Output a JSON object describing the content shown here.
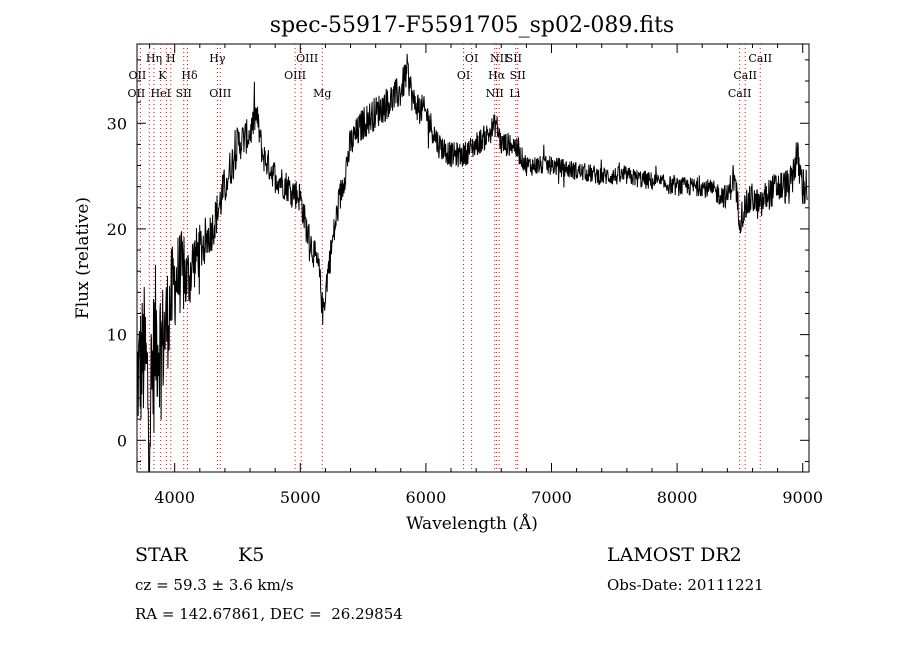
{
  "chart_data": {
    "type": "line",
    "title": "spec-55917-F5591705_sp02-089.fits",
    "xlabel": "Wavelength (Å)",
    "ylabel": "Flux (relative)",
    "xlim": [
      3700,
      9050
    ],
    "ylim": [
      -3,
      37.5
    ],
    "xticks": [
      4000,
      5000,
      6000,
      7000,
      8000,
      9000
    ],
    "yticks": [
      0,
      10,
      20,
      30
    ],
    "series": [
      {
        "name": "flux",
        "anchors_x": [
          3700,
          3760,
          3800,
          3850,
          3900,
          3950,
          4000,
          4050,
          4100,
          4150,
          4200,
          4300,
          4400,
          4500,
          4600,
          4650,
          4700,
          4800,
          4900,
          5000,
          5050,
          5100,
          5150,
          5180,
          5220,
          5300,
          5400,
          5500,
          5600,
          5700,
          5800,
          5850,
          5900,
          6000,
          6100,
          6200,
          6300,
          6400,
          6500,
          6560,
          6600,
          6700,
          6800,
          7000,
          7200,
          7400,
          7600,
          7800,
          8000,
          8200,
          8400,
          8450,
          8500,
          8542,
          8600,
          8662,
          8700,
          8800,
          8900,
          8950,
          9000
        ],
        "anchors_y": [
          6,
          8,
          3,
          10,
          9,
          12,
          15,
          16,
          15,
          17,
          18,
          20,
          24,
          28,
          29,
          31,
          27,
          25,
          24,
          23,
          20,
          18,
          16,
          12,
          16,
          22,
          28,
          30,
          31,
          32,
          33,
          35,
          32,
          31,
          28,
          27,
          27,
          28,
          29,
          30,
          28,
          28,
          26,
          26,
          25.5,
          25,
          25,
          24.5,
          24,
          24,
          23,
          25,
          21,
          22,
          23,
          22,
          23,
          24,
          24,
          27,
          24
        ],
        "noise_amp": [
          6,
          7,
          8,
          7,
          6,
          5,
          4.5,
          4,
          3.5,
          3,
          2.5,
          2,
          2,
          1.8,
          1.6,
          1.5,
          1.5,
          1.5,
          1.5,
          1.5,
          1.5,
          1.5,
          1.5,
          1.5,
          1.5,
          1.6,
          1.6,
          1.6,
          1.6,
          1.6,
          1.6,
          1.6,
          1.5,
          1.4,
          1.3,
          1.2,
          1.2,
          1.2,
          1.2,
          1.2,
          1.2,
          1.1,
          1,
          0.9,
          0.9,
          0.9,
          0.9,
          0.9,
          0.9,
          0.9,
          1.2,
          1.5,
          1.5,
          1.5,
          1.5,
          1.5,
          1.5,
          1.6,
          1.8,
          2,
          2
        ]
      }
    ],
    "lines": [
      {
        "name": "OII",
        "wave": 3727,
        "row": 2,
        "dx": -3
      },
      {
        "name": "Hη",
        "wave": 3835,
        "row": 0,
        "dx": 0
      },
      {
        "name": "OII",
        "wave": 3727,
        "row": 3,
        "dx": -4
      },
      {
        "name": "HeI",
        "wave": 3889,
        "row": 3,
        "dx": 0
      },
      {
        "name": "K",
        "wave": 3934,
        "row": 1,
        "dx": -4
      },
      {
        "name": "H",
        "wave": 3969,
        "row": 0,
        "dx": 0
      },
      {
        "name": "SII",
        "wave": 4072,
        "row": 3,
        "dx": 0
      },
      {
        "name": "Hδ",
        "wave": 4102,
        "row": 1,
        "dx": 2
      },
      {
        "name": "Hγ",
        "wave": 4340,
        "row": 0,
        "dx": 0
      },
      {
        "name": "OIII",
        "wave": 4363,
        "row": 3,
        "dx": 0
      },
      {
        "name": "OIII",
        "wave": 5007,
        "row": 0,
        "dx": 6
      },
      {
        "name": "OIII",
        "wave": 4959,
        "row": 1,
        "dx": 0
      },
      {
        "name": "Mg",
        "wave": 5175,
        "row": 3,
        "dx": 0
      },
      {
        "name": "OI",
        "wave": 6300,
        "row": 1,
        "dx": 0
      },
      {
        "name": "OI",
        "wave": 6364,
        "row": 0,
        "dx": 0
      },
      {
        "name": "NII",
        "wave": 6583,
        "row": 0,
        "dx": 0
      },
      {
        "name": "Hα",
        "wave": 6563,
        "row": 1,
        "dx": 0
      },
      {
        "name": "NII",
        "wave": 6548,
        "row": 3,
        "dx": 0
      },
      {
        "name": "SII",
        "wave": 6716,
        "row": 0,
        "dx": -2
      },
      {
        "name": "SII",
        "wave": 6731,
        "row": 1,
        "dx": 0
      },
      {
        "name": "Li",
        "wave": 6708,
        "row": 3,
        "dx": 0
      },
      {
        "name": "CaII",
        "wave": 8662,
        "row": 0,
        "dx": 0
      },
      {
        "name": "CaII",
        "wave": 8542,
        "row": 1,
        "dx": 0
      },
      {
        "name": "CaII",
        "wave": 8498,
        "row": 3,
        "dx": 0
      }
    ],
    "line_markers": [
      3727,
      3798,
      3835,
      3889,
      3934,
      3969,
      4072,
      4102,
      4340,
      4363,
      4959,
      5007,
      5175,
      6300,
      6364,
      6548,
      6563,
      6583,
      6716,
      6731,
      8498,
      8542,
      8662
    ]
  },
  "info": {
    "object_class": "STAR",
    "subclass": "K5",
    "survey": "LAMOST DR2",
    "cz": "cz = 59.3 ± 3.6 km/s",
    "obs_date": "Obs-Date: 20111221",
    "radec": "RA = 142.67861, DEC =  26.29854"
  },
  "colors": {
    "spectrum": "#000000",
    "marker": "#ff0000",
    "axis": "#000000"
  }
}
